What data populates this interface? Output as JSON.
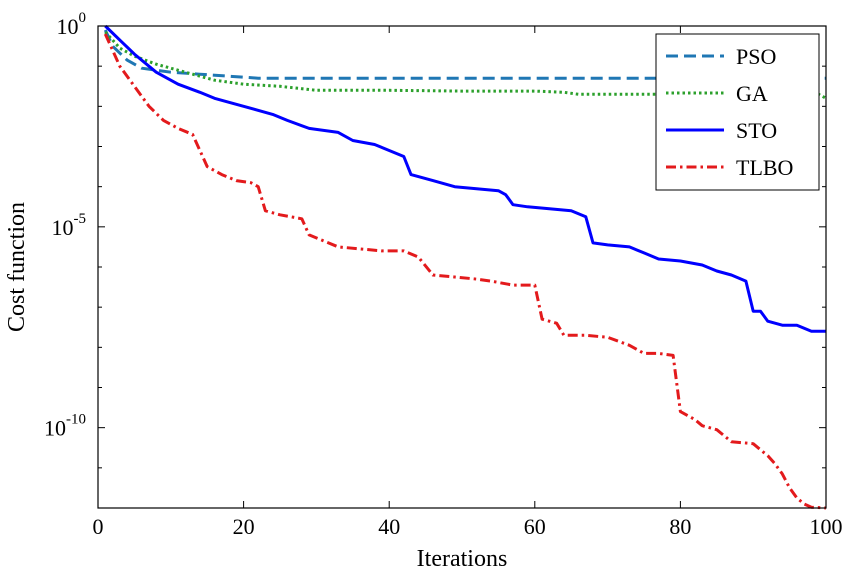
{
  "chart_data": {
    "type": "line",
    "title": "",
    "xlabel": "Iterations",
    "ylabel": "Cost function",
    "xlim": [
      0,
      100
    ],
    "ylim_log10": [
      -12,
      0
    ],
    "yscale": "log",
    "grid": false,
    "legend_position": "top-right",
    "x_ticks": [
      {
        "value": 0,
        "label": "0"
      },
      {
        "value": 20,
        "label": "20"
      },
      {
        "value": 40,
        "label": "40"
      },
      {
        "value": 60,
        "label": "60"
      },
      {
        "value": 80,
        "label": "80"
      },
      {
        "value": 100,
        "label": "100"
      }
    ],
    "y_ticks": [
      {
        "exp": 0,
        "base": "10",
        "exponent": "0"
      },
      {
        "exp": -5,
        "base": "10",
        "exponent": "-5"
      },
      {
        "exp": -10,
        "base": "10",
        "exponent": "-10"
      }
    ],
    "series": [
      {
        "name": "PSO",
        "color": "#1f77b4",
        "style": "dashed",
        "points_log10": [
          [
            1,
            -0.1
          ],
          [
            2,
            -0.5
          ],
          [
            4,
            -0.85
          ],
          [
            6,
            -1.05
          ],
          [
            10,
            -1.15
          ],
          [
            14,
            -1.2
          ],
          [
            18,
            -1.25
          ],
          [
            22,
            -1.3
          ],
          [
            30,
            -1.3
          ],
          [
            50,
            -1.3
          ],
          [
            70,
            -1.3
          ],
          [
            100,
            -1.3
          ]
        ]
      },
      {
        "name": "GA",
        "color": "#2ca02c",
        "style": "dotted",
        "points_log10": [
          [
            1,
            -0.15
          ],
          [
            3,
            -0.55
          ],
          [
            5,
            -0.75
          ],
          [
            8,
            -0.95
          ],
          [
            12,
            -1.15
          ],
          [
            16,
            -1.35
          ],
          [
            20,
            -1.45
          ],
          [
            25,
            -1.5
          ],
          [
            30,
            -1.6
          ],
          [
            40,
            -1.6
          ],
          [
            50,
            -1.62
          ],
          [
            60,
            -1.62
          ],
          [
            64,
            -1.65
          ],
          [
            66,
            -1.7
          ],
          [
            80,
            -1.7
          ],
          [
            95,
            -1.7
          ],
          [
            99,
            -1.7
          ],
          [
            100,
            -1.8
          ]
        ]
      },
      {
        "name": "STO",
        "color": "#0000ff",
        "style": "solid",
        "points_log10": [
          [
            1,
            0
          ],
          [
            3,
            -0.35
          ],
          [
            5,
            -0.7
          ],
          [
            8,
            -1.15
          ],
          [
            11,
            -1.45
          ],
          [
            14,
            -1.65
          ],
          [
            16,
            -1.8
          ],
          [
            18,
            -1.9
          ],
          [
            20,
            -2.0
          ],
          [
            24,
            -2.2
          ],
          [
            26,
            -2.35
          ],
          [
            29,
            -2.55
          ],
          [
            33,
            -2.65
          ],
          [
            35,
            -2.85
          ],
          [
            38,
            -2.95
          ],
          [
            40,
            -3.1
          ],
          [
            42,
            -3.25
          ],
          [
            43,
            -3.7
          ],
          [
            46,
            -3.85
          ],
          [
            49,
            -4.0
          ],
          [
            52,
            -4.05
          ],
          [
            55,
            -4.1
          ],
          [
            56,
            -4.2
          ],
          [
            57,
            -4.45
          ],
          [
            59,
            -4.5
          ],
          [
            62,
            -4.55
          ],
          [
            65,
            -4.6
          ],
          [
            67,
            -4.75
          ],
          [
            68,
            -5.4
          ],
          [
            70,
            -5.45
          ],
          [
            73,
            -5.5
          ],
          [
            75,
            -5.65
          ],
          [
            77,
            -5.8
          ],
          [
            80,
            -5.85
          ],
          [
            83,
            -5.95
          ],
          [
            85,
            -6.1
          ],
          [
            87,
            -6.2
          ],
          [
            89,
            -6.35
          ],
          [
            90,
            -7.1
          ],
          [
            91,
            -7.1
          ],
          [
            92,
            -7.35
          ],
          [
            94,
            -7.45
          ],
          [
            96,
            -7.45
          ],
          [
            98,
            -7.6
          ],
          [
            100,
            -7.6
          ]
        ]
      },
      {
        "name": "TLBO",
        "color": "#e31a1c",
        "style": "dashdot",
        "points_log10": [
          [
            1,
            -0.2
          ],
          [
            3,
            -1.0
          ],
          [
            5,
            -1.5
          ],
          [
            7,
            -2.0
          ],
          [
            9,
            -2.35
          ],
          [
            11,
            -2.55
          ],
          [
            13,
            -2.7
          ],
          [
            14,
            -3.1
          ],
          [
            15,
            -3.5
          ],
          [
            17,
            -3.7
          ],
          [
            19,
            -3.85
          ],
          [
            21,
            -3.9
          ],
          [
            22,
            -4.0
          ],
          [
            23,
            -4.6
          ],
          [
            25,
            -4.7
          ],
          [
            28,
            -4.8
          ],
          [
            29,
            -5.2
          ],
          [
            31,
            -5.35
          ],
          [
            33,
            -5.5
          ],
          [
            36,
            -5.55
          ],
          [
            39,
            -5.6
          ],
          [
            42,
            -5.6
          ],
          [
            44,
            -5.75
          ],
          [
            46,
            -6.2
          ],
          [
            49,
            -6.25
          ],
          [
            52,
            -6.3
          ],
          [
            54,
            -6.35
          ],
          [
            57,
            -6.45
          ],
          [
            60,
            -6.45
          ],
          [
            61,
            -7.3
          ],
          [
            63,
            -7.4
          ],
          [
            64,
            -7.7
          ],
          [
            67,
            -7.7
          ],
          [
            70,
            -7.75
          ],
          [
            73,
            -7.95
          ],
          [
            75,
            -8.15
          ],
          [
            77,
            -8.15
          ],
          [
            79,
            -8.2
          ],
          [
            80,
            -9.6
          ],
          [
            81,
            -9.7
          ],
          [
            82,
            -9.8
          ],
          [
            83,
            -9.95
          ],
          [
            85,
            -10.05
          ],
          [
            87,
            -10.35
          ],
          [
            90,
            -10.4
          ],
          [
            92,
            -10.7
          ],
          [
            93,
            -10.9
          ],
          [
            94,
            -11.15
          ],
          [
            95,
            -11.5
          ],
          [
            96,
            -11.75
          ],
          [
            97,
            -11.9
          ],
          [
            98,
            -11.98
          ],
          [
            100,
            -12.0
          ]
        ]
      }
    ]
  }
}
